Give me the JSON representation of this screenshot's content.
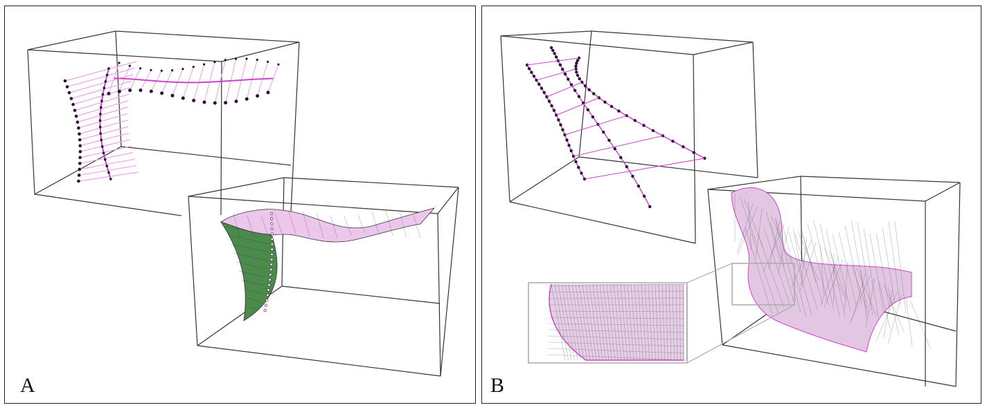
{
  "panels": {
    "a": {
      "label": "A"
    },
    "b": {
      "label": "B"
    }
  },
  "colors": {
    "curve": "#cc44cc",
    "curve_light": "#e8a6e8",
    "surface_pink": "#ecc6ec",
    "surface_green": "#4c8a4c",
    "mesh": "#333333",
    "point": "#2a1030",
    "box": "#333333"
  }
}
